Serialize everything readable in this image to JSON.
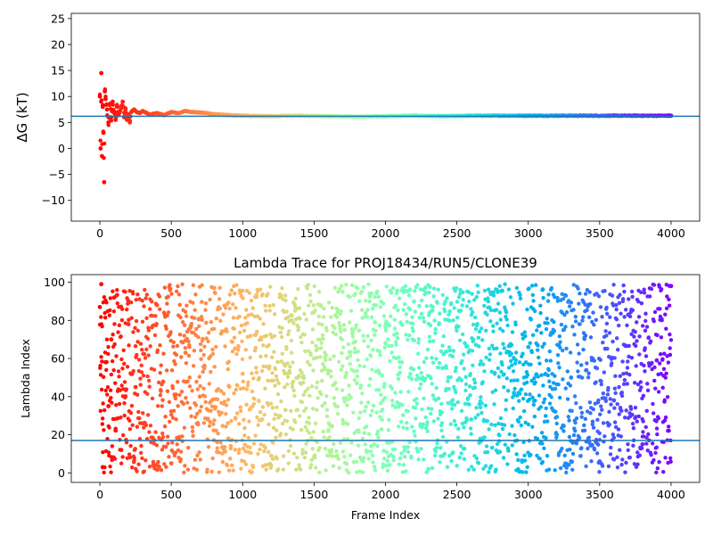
{
  "chart_data": [
    {
      "type": "scatter",
      "ylabel": "ΔG (kT)",
      "xlabel": "",
      "title": "",
      "xlim": [
        -200,
        4200
      ],
      "ylim": [
        -14,
        26
      ],
      "xticks": [
        0,
        500,
        1000,
        1500,
        2000,
        2500,
        3000,
        3500,
        4000
      ],
      "yticks": [
        -10,
        -5,
        0,
        5,
        10,
        15,
        20,
        25
      ],
      "colormap": "rainbow (red at frame 0 → violet at frame 4000)",
      "hline": {
        "y": 6.2,
        "color": "#1f77b4"
      },
      "series": [
        {
          "x": [
            0,
            5,
            10,
            15,
            20,
            25,
            30,
            35,
            40,
            50,
            60,
            70,
            80,
            90,
            100,
            110,
            120,
            130,
            140,
            150,
            160,
            170,
            180,
            190,
            200,
            210,
            220,
            240,
            260,
            280,
            300,
            350,
            400,
            450,
            500,
            550,
            600,
            650,
            700,
            750,
            800,
            900,
            1000,
            1200,
            1400,
            1600,
            1800,
            2000,
            2200,
            2400,
            2600,
            2800,
            3000,
            3200,
            3400,
            3600,
            3800,
            4000
          ],
          "y": [
            10,
            0,
            14.5,
            -1.5,
            8,
            3,
            -6.5,
            11,
            9.5,
            7.5,
            5,
            8.5,
            6,
            9,
            7,
            5.5,
            8,
            6.5,
            7.2,
            7.8,
            9,
            6,
            7.5,
            5.5,
            6.5,
            5,
            7,
            7.5,
            7,
            6.8,
            7.2,
            6.5,
            6.8,
            6.4,
            7,
            6.8,
            7.2,
            7,
            6.9,
            6.8,
            6.6,
            6.4,
            6.3,
            6.2,
            6.3,
            6.2,
            6.1,
            6.2,
            6.3,
            6.2,
            6.3,
            6.3,
            6.3,
            6.3,
            6.3,
            6.3,
            6.3,
            6.3
          ]
        }
      ]
    },
    {
      "type": "scatter",
      "title": "Lambda Trace for PROJ18434/RUN5/CLONE39",
      "xlabel": "Frame Index",
      "ylabel": "Lambda Index",
      "xlim": [
        -200,
        4200
      ],
      "ylim": [
        -5,
        104
      ],
      "xticks": [
        0,
        500,
        1000,
        1500,
        2000,
        2500,
        3000,
        3500,
        4000
      ],
      "yticks": [
        0,
        20,
        40,
        60,
        80,
        100
      ],
      "colormap": "rainbow (red at frame 0 → violet at frame 4000)",
      "hline": {
        "y": 17,
        "color": "#1f77b4"
      },
      "series": [
        {
          "x": [
            0,
            10,
            20,
            40,
            60,
            80,
            100,
            150,
            200,
            250,
            300,
            400,
            500,
            600,
            700,
            800,
            900,
            1000,
            1100,
            1200,
            1300,
            1400,
            1500,
            1600,
            1700,
            1800,
            1900,
            2000,
            2100,
            2200,
            2300,
            2400,
            2500,
            2600,
            2700,
            2800,
            2900,
            3000,
            3100,
            3200,
            3300,
            3400,
            3500,
            3600,
            3700,
            3800,
            3900,
            4000
          ],
          "y": [
            87,
            99,
            3,
            58,
            35,
            70,
            92,
            12,
            78,
            45,
            26,
            88,
            5,
            63,
            40,
            97,
            18,
            52,
            74,
            9,
            33,
            81,
            60,
            22,
            95,
            47,
            14,
            68,
            36,
            90,
            2,
            55,
            77,
            28,
            84,
            11,
            42,
            66,
            96,
            20,
            50,
            72,
            6,
            38,
            83,
            15,
            59,
            98
          ]
        }
      ]
    }
  ]
}
